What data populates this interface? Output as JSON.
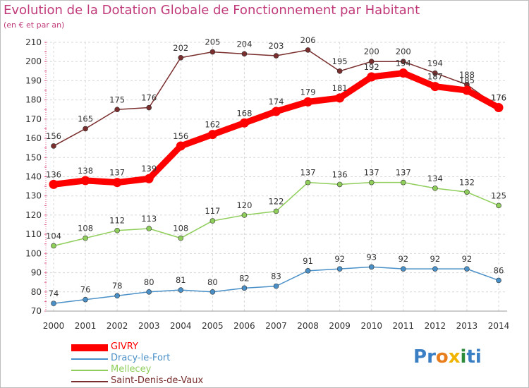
{
  "header": {
    "title": "Evolution de la Dotation Globale de Fonctionnement par Habitant",
    "subtitle": "(en € et par an)"
  },
  "logo": {
    "text": "Proxiti",
    "letters": [
      "P",
      "r",
      "o",
      "x",
      "i",
      "t",
      "i"
    ],
    "colors": [
      "#3a7fc4",
      "#3a7fc4",
      "#e87d1e",
      "#f0b400",
      "#2c8c3c",
      "#3a7fc4",
      "#3a7fc4"
    ]
  },
  "chart_data": {
    "type": "line",
    "x": [
      "2000",
      "2001",
      "2002",
      "2003",
      "2004",
      "2005",
      "2006",
      "2007",
      "2008",
      "2009",
      "2010",
      "2011",
      "2012",
      "2013",
      "2014"
    ],
    "ylim": [
      70,
      210
    ],
    "yticks": [
      70,
      80,
      90,
      100,
      110,
      120,
      130,
      140,
      150,
      160,
      170,
      180,
      190,
      200,
      210
    ],
    "grid": true,
    "legend_position": "bottom-left",
    "series": [
      {
        "name": "GIVRY",
        "color": "#ff0000",
        "emphasis": true,
        "values": [
          136,
          138,
          137,
          139,
          156,
          162,
          168,
          174,
          179,
          181,
          192,
          194,
          187,
          185,
          176
        ]
      },
      {
        "name": "Dracy-le-Fort",
        "color": "#4a90c8",
        "emphasis": false,
        "values": [
          74,
          76,
          78,
          80,
          81,
          80,
          82,
          83,
          91,
          92,
          93,
          92,
          92,
          92,
          86
        ]
      },
      {
        "name": "Mellecey",
        "color": "#8fce5a",
        "emphasis": false,
        "values": [
          104,
          108,
          112,
          113,
          108,
          117,
          120,
          122,
          137,
          136,
          137,
          137,
          134,
          132,
          125
        ]
      },
      {
        "name": "Saint-Denis-de-Vaux",
        "color": "#7a2e2e",
        "emphasis": false,
        "values": [
          156,
          165,
          175,
          176,
          202,
          205,
          204,
          203,
          206,
          195,
          200,
          200,
          194,
          188,
          176
        ]
      }
    ]
  }
}
